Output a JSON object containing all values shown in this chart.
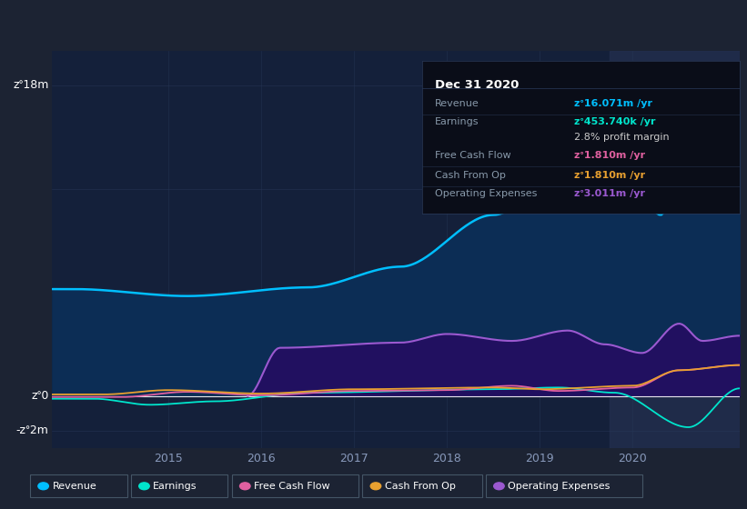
{
  "background_color": "#1c2333",
  "plot_bg_color": "#14203a",
  "revenue_color": "#00bfff",
  "earnings_color": "#00e5cc",
  "fcf_color": "#e060a0",
  "cashfromop_color": "#e8a030",
  "opex_color": "#9b59d0",
  "revenue_fill_color": "#0a2545",
  "opex_fill_color": "#2a1560",
  "highlight_color": "#1e2d50",
  "ylim": [
    -3000000,
    20000000
  ],
  "xlim": [
    2013.75,
    2021.15
  ],
  "y_ticks": [
    18000000,
    0,
    -2000000
  ],
  "y_tick_labels": [
    "zᐤ18m",
    "zᐤ0",
    "-zᐤ2m"
  ],
  "x_ticks": [
    2015,
    2016,
    2017,
    2018,
    2019,
    2020
  ],
  "x_tick_labels": [
    "2015",
    "2016",
    "2017",
    "2018",
    "2019",
    "2020"
  ],
  "grid_color": "#2a3a5a",
  "legend_items": [
    {
      "label": "Revenue",
      "color": "#00bfff"
    },
    {
      "label": "Earnings",
      "color": "#00e5cc"
    },
    {
      "label": "Free Cash Flow",
      "color": "#e060a0"
    },
    {
      "label": "Cash From Op",
      "color": "#e8a030"
    },
    {
      "label": "Operating Expenses",
      "color": "#9b59d0"
    }
  ],
  "infobox_bg": "#0a0d18",
  "infobox_border": "#2a3a5a",
  "infobox_title": "Dec 31 2020",
  "infobox_rows": [
    {
      "label": "Revenue",
      "value": "zᐤ16.071m /yr",
      "vcolor": "#00bfff"
    },
    {
      "label": "Earnings",
      "value": "zᐤ453.740k /yr",
      "vcolor": "#00e5cc"
    },
    {
      "label": "",
      "value": "2.8% profit margin",
      "vcolor": "#cccccc"
    },
    {
      "label": "Free Cash Flow",
      "value": "zᐤ1.810m /yr",
      "vcolor": "#e060a0"
    },
    {
      "label": "Cash From Op",
      "value": "zᐤ1.810m /yr",
      "vcolor": "#e8a030"
    },
    {
      "label": "Operating Expenses",
      "value": "zᐤ3.011m /yr",
      "vcolor": "#9b59d0"
    }
  ]
}
